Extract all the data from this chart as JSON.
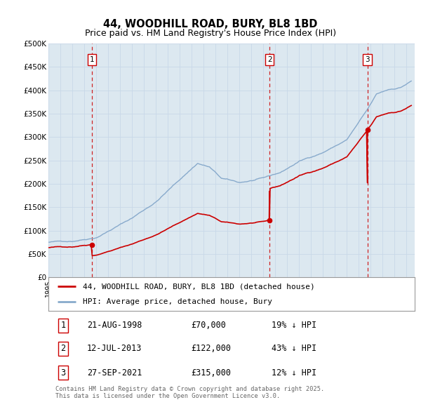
{
  "title": "44, WOODHILL ROAD, BURY, BL8 1BD",
  "subtitle": "Price paid vs. HM Land Registry's House Price Index (HPI)",
  "ylim": [
    0,
    500000
  ],
  "yticks": [
    0,
    50000,
    100000,
    150000,
    200000,
    250000,
    300000,
    350000,
    400000,
    450000,
    500000
  ],
  "ytick_labels": [
    "£0",
    "£50K",
    "£100K",
    "£150K",
    "£200K",
    "£250K",
    "£300K",
    "£350K",
    "£400K",
    "£450K",
    "£500K"
  ],
  "xlim_start": 1995.0,
  "xlim_end": 2025.7,
  "red_line_color": "#cc0000",
  "blue_line_color": "#88aacc",
  "sale_marker_color": "#cc0000",
  "vline_color": "#cc0000",
  "grid_color": "#c8d8e8",
  "background_color": "#dce8f0",
  "sales": [
    {
      "date_decimal": 1998.64,
      "price": 70000,
      "label": "1"
    },
    {
      "date_decimal": 2013.53,
      "price": 122000,
      "label": "2"
    },
    {
      "date_decimal": 2021.74,
      "price": 315000,
      "label": "3"
    }
  ],
  "transaction_table": [
    {
      "num": "1",
      "date": "21-AUG-1998",
      "price": "£70,000",
      "hpi_diff": "19% ↓ HPI"
    },
    {
      "num": "2",
      "date": "12-JUL-2013",
      "price": "£122,000",
      "hpi_diff": "43% ↓ HPI"
    },
    {
      "num": "3",
      "date": "27-SEP-2021",
      "price": "£315,000",
      "hpi_diff": "12% ↓ HPI"
    }
  ],
  "legend_red_label": "44, WOODHILL ROAD, BURY, BL8 1BD (detached house)",
  "legend_blue_label": "HPI: Average price, detached house, Bury",
  "footer_text": "Contains HM Land Registry data © Crown copyright and database right 2025.\nThis data is licensed under the Open Government Licence v3.0.",
  "title_fontsize": 10.5,
  "subtitle_fontsize": 9,
  "axis_fontsize": 7.5,
  "legend_fontsize": 8,
  "table_fontsize": 8.5
}
